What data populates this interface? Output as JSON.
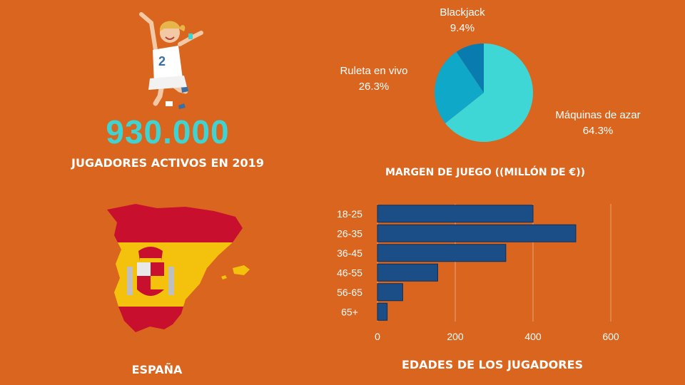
{
  "colors": {
    "background": "#D9651F",
    "accent_teal": "#3FD4D2",
    "pie": [
      "#3FD6D6",
      "#0FA8C8",
      "#0A7BAE"
    ],
    "bars": "#1B4D86",
    "flag_red": "#C8102E",
    "flag_yellow": "#F4C20D"
  },
  "hero": {
    "icon": "jumping-player-illustration",
    "jersey_number": "2",
    "active_players": "930.000",
    "active_players_label": "JUGADORES ACTIVOS EN 2019"
  },
  "map": {
    "icon": "spain-map-flag-icon",
    "country_label": "ESPAÑA"
  },
  "chart_data": [
    {
      "type": "pie",
      "title": "MARGEN DE JUEGO ((MILLÓN DE €))",
      "categories": [
        "Máquinas de azar",
        "Ruleta en vivo",
        "Blackjack"
      ],
      "values": [
        64.3,
        26.3,
        9.4
      ],
      "value_labels": [
        "64.3%",
        "26.3%",
        "9.4%"
      ],
      "legend": "none"
    },
    {
      "type": "bar",
      "orientation": "horizontal",
      "title": "EDADES DE LOS JUGADORES",
      "categories": [
        "18-25",
        "26-35",
        "36-45",
        "46-55",
        "56-65",
        "65+"
      ],
      "values": [
        400,
        510,
        330,
        155,
        65,
        25
      ],
      "xlim": [
        0,
        600
      ],
      "xticks": [
        0,
        200,
        400,
        600
      ],
      "xtick_labels": [
        "0",
        "200",
        "400",
        "600"
      ],
      "grid": true,
      "legend": "none"
    }
  ]
}
